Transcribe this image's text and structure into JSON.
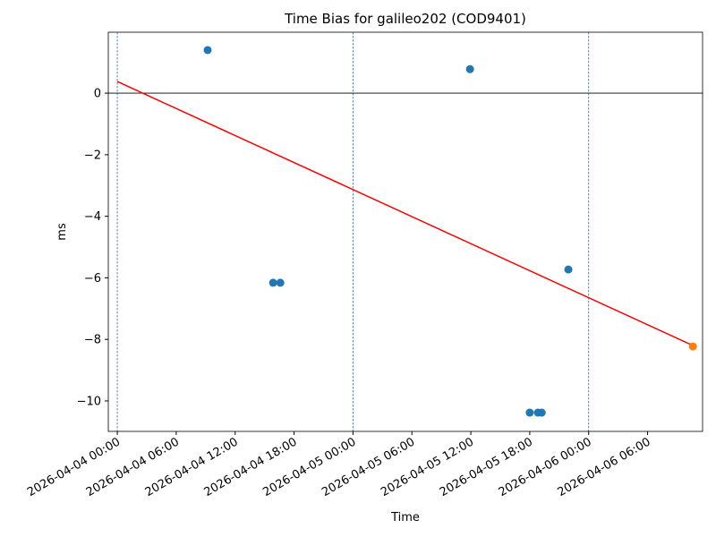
{
  "chart_data": {
    "type": "scatter",
    "title": "Time Bias for galileo202 (COD9401)",
    "xlabel": "Time",
    "ylabel": "ms",
    "series": [
      {
        "color": "#1f77b4",
        "x": [
          "2026-04-04 09:12",
          "2026-04-04 15:52",
          "2026-04-04 16:36",
          "2026-04-05 11:55",
          "2026-04-05 18:00",
          "2026-04-05 18:50",
          "2026-04-05 19:13",
          "2026-04-05 21:56"
        ],
        "values": [
          1.4,
          -6.16,
          -6.16,
          0.78,
          -10.38,
          -10.38,
          -10.38,
          -5.73
        ]
      },
      {
        "color": "#ff7f0e",
        "x": [
          "2026-04-06 10:37"
        ],
        "values": [
          -8.23
        ]
      }
    ],
    "trend": {
      "color": "#ff0000",
      "x": [
        "2026-04-04 00:00",
        "2026-04-06 10:37"
      ],
      "values": [
        0.38,
        -8.2
      ]
    },
    "hline": 0,
    "vlines": [
      "2026-04-04 00:00",
      "2026-04-05 00:00",
      "2026-04-06 00:00"
    ],
    "vline_color": "#1f77b4",
    "xlim": [
      "2026-04-03 23:05",
      "2026-04-06 11:36"
    ],
    "xticks": [
      "2026-04-04 00:00",
      "2026-04-04 06:00",
      "2026-04-04 12:00",
      "2026-04-04 18:00",
      "2026-04-05 00:00",
      "2026-04-05 06:00",
      "2026-04-05 12:00",
      "2026-04-05 18:00",
      "2026-04-06 00:00",
      "2026-04-06 06:00"
    ],
    "ylim": [
      -10.99,
      1.98
    ],
    "yticks": [
      {
        "value": -10,
        "label": "−10"
      },
      {
        "value": -8,
        "label": "−8"
      },
      {
        "value": -6,
        "label": "−6"
      },
      {
        "value": -4,
        "label": "−4"
      },
      {
        "value": -2,
        "label": "−2"
      },
      0
    ]
  }
}
